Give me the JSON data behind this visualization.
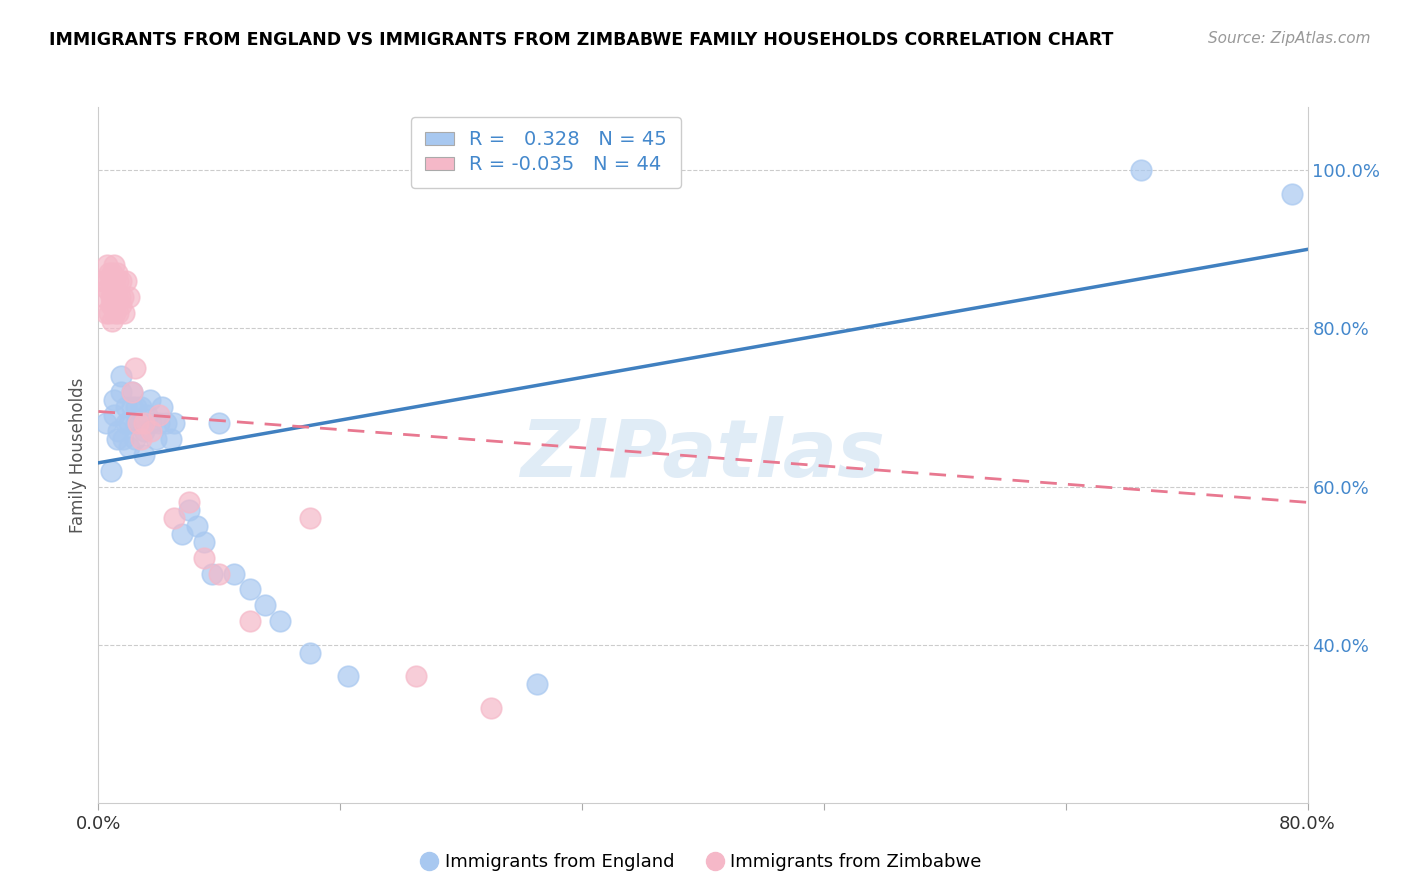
{
  "title": "IMMIGRANTS FROM ENGLAND VS IMMIGRANTS FROM ZIMBABWE FAMILY HOUSEHOLDS CORRELATION CHART",
  "source": "Source: ZipAtlas.com",
  "ylabel": "Family Households",
  "xmin": 0.0,
  "xmax": 0.8,
  "ymin": 0.2,
  "ymax": 1.08,
  "right_yticks": [
    0.4,
    0.6,
    0.8,
    1.0
  ],
  "right_yticklabels": [
    "40.0%",
    "60.0%",
    "80.0%",
    "100.0%"
  ],
  "legend_england_R": "0.328",
  "legend_england_N": "45",
  "legend_zimbabwe_R": "-0.035",
  "legend_zimbabwe_N": "44",
  "england_color": "#a8c8f0",
  "zimbabwe_color": "#f5b8c8",
  "england_line_color": "#4080c0",
  "zimbabwe_line_color": "#e87890",
  "watermark": "ZIPatlas",
  "england_scatter_x": [
    0.005,
    0.008,
    0.01,
    0.01,
    0.012,
    0.013,
    0.015,
    0.015,
    0.016,
    0.018,
    0.018,
    0.02,
    0.02,
    0.022,
    0.022,
    0.024,
    0.025,
    0.025,
    0.028,
    0.03,
    0.03,
    0.032,
    0.034,
    0.035,
    0.038,
    0.04,
    0.042,
    0.045,
    0.048,
    0.05,
    0.055,
    0.06,
    0.065,
    0.07,
    0.075,
    0.08,
    0.09,
    0.1,
    0.11,
    0.12,
    0.14,
    0.165,
    0.29,
    0.69,
    0.79
  ],
  "england_scatter_y": [
    0.68,
    0.62,
    0.69,
    0.71,
    0.66,
    0.67,
    0.72,
    0.74,
    0.66,
    0.68,
    0.7,
    0.65,
    0.68,
    0.7,
    0.72,
    0.66,
    0.68,
    0.7,
    0.7,
    0.64,
    0.67,
    0.69,
    0.71,
    0.68,
    0.66,
    0.68,
    0.7,
    0.68,
    0.66,
    0.68,
    0.54,
    0.57,
    0.55,
    0.53,
    0.49,
    0.68,
    0.49,
    0.47,
    0.45,
    0.43,
    0.39,
    0.36,
    0.35,
    1.0,
    0.97
  ],
  "zimbabwe_scatter_x": [
    0.003,
    0.004,
    0.005,
    0.005,
    0.006,
    0.006,
    0.007,
    0.007,
    0.008,
    0.008,
    0.008,
    0.009,
    0.009,
    0.01,
    0.01,
    0.01,
    0.011,
    0.011,
    0.012,
    0.012,
    0.013,
    0.013,
    0.014,
    0.015,
    0.015,
    0.016,
    0.017,
    0.018,
    0.02,
    0.022,
    0.024,
    0.026,
    0.028,
    0.03,
    0.035,
    0.04,
    0.05,
    0.06,
    0.07,
    0.08,
    0.1,
    0.14,
    0.21,
    0.26
  ],
  "zimbabwe_scatter_y": [
    0.86,
    0.84,
    0.86,
    0.82,
    0.85,
    0.88,
    0.82,
    0.87,
    0.84,
    0.86,
    0.83,
    0.81,
    0.87,
    0.84,
    0.86,
    0.88,
    0.82,
    0.85,
    0.84,
    0.87,
    0.82,
    0.86,
    0.84,
    0.83,
    0.86,
    0.84,
    0.82,
    0.86,
    0.84,
    0.72,
    0.75,
    0.68,
    0.66,
    0.68,
    0.67,
    0.69,
    0.56,
    0.58,
    0.51,
    0.49,
    0.43,
    0.56,
    0.36,
    0.32
  ],
  "eng_trend_x0": 0.0,
  "eng_trend_y0": 0.63,
  "eng_trend_x1": 0.8,
  "eng_trend_y1": 0.9,
  "zim_trend_x0": 0.0,
  "zim_trend_y0": 0.695,
  "zim_trend_x1": 0.8,
  "zim_trend_y1": 0.58
}
